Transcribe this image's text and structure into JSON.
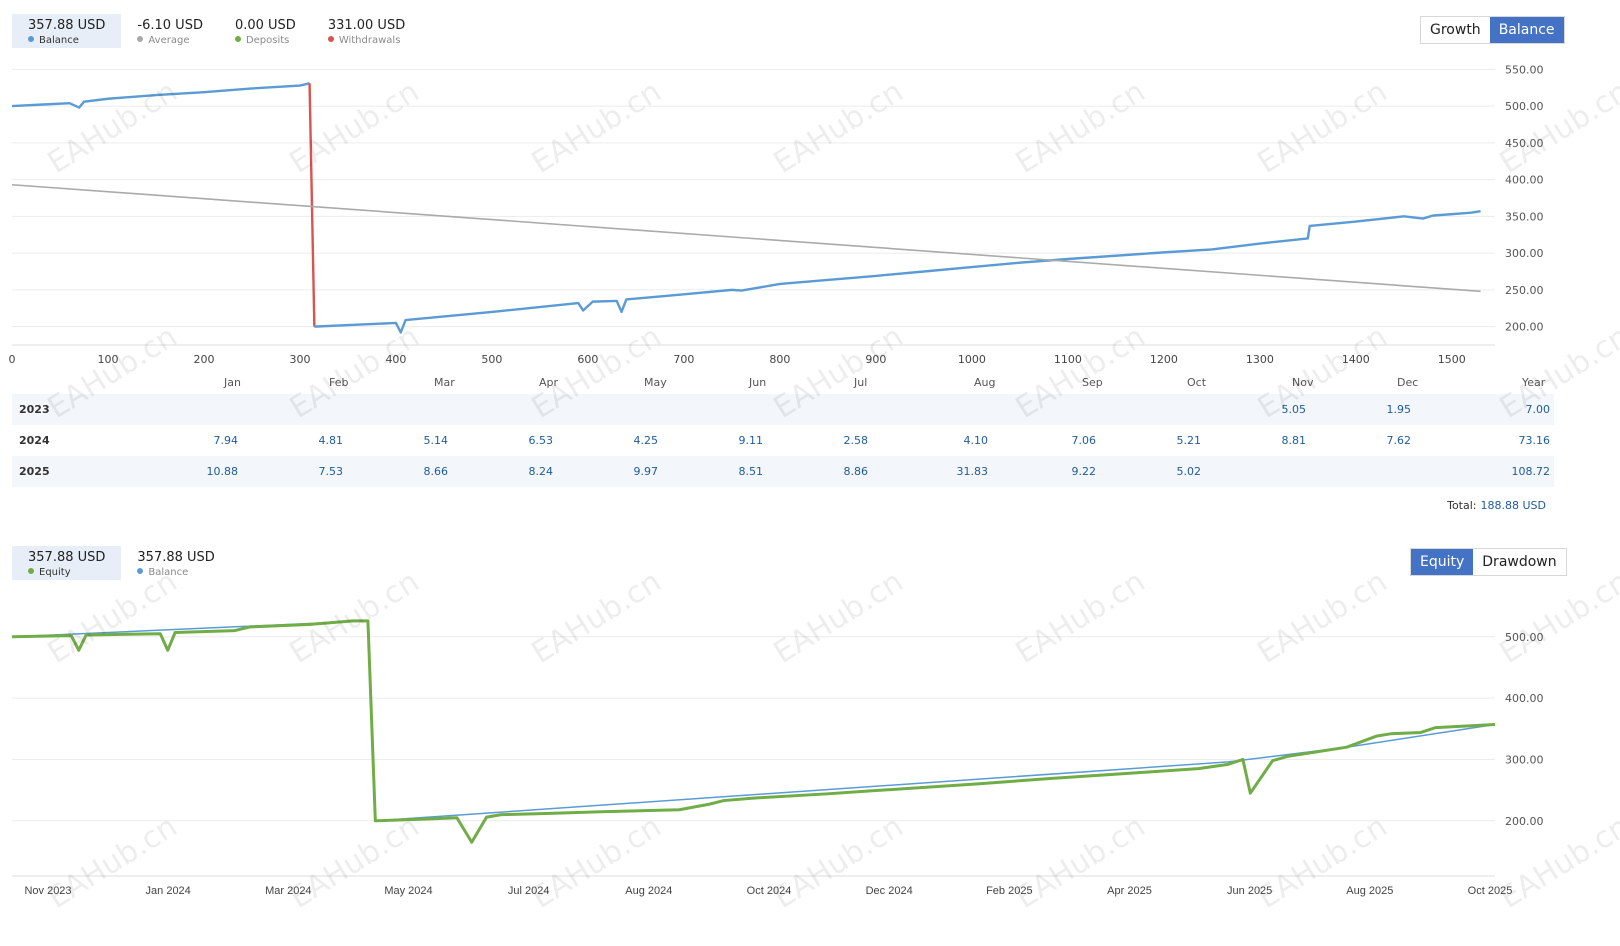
{
  "balance_panel": {
    "legend": [
      {
        "value": "357.88 USD",
        "label": "Balance",
        "color": "#5b9bd5",
        "active": true
      },
      {
        "value": "-6.10 USD",
        "label": "Average",
        "color": "#aaaaaa",
        "active": false
      },
      {
        "value": "0.00 USD",
        "label": "Deposits",
        "color": "#70ad47",
        "active": false
      },
      {
        "value": "331.00 USD",
        "label": "Withdrawals",
        "color": "#d9534f",
        "active": false
      }
    ],
    "buttons": {
      "growth": "Growth",
      "balance": "Balance"
    }
  },
  "returns_table": {
    "months": [
      "Jan",
      "Feb",
      "Mar",
      "Apr",
      "May",
      "Jun",
      "Jul",
      "Aug",
      "Sep",
      "Oct",
      "Nov",
      "Dec",
      "Year"
    ],
    "rows": [
      {
        "year": "2023",
        "values": [
          "",
          "",
          "",
          "",
          "",
          "",
          "",
          "",
          "",
          "",
          "5.05",
          "1.95",
          "7.00"
        ]
      },
      {
        "year": "2024",
        "values": [
          "7.94",
          "4.81",
          "5.14",
          "6.53",
          "4.25",
          "9.11",
          "2.58",
          "4.10",
          "7.06",
          "5.21",
          "8.81",
          "7.62",
          "73.16"
        ]
      },
      {
        "year": "2025",
        "values": [
          "10.88",
          "7.53",
          "8.66",
          "8.24",
          "9.97",
          "8.51",
          "8.86",
          "31.83",
          "9.22",
          "5.02",
          "",
          "",
          "108.72"
        ]
      }
    ],
    "total_label": "Total:",
    "total_value": "188.88 USD"
  },
  "equity_panel": {
    "legend": [
      {
        "value": "357.88 USD",
        "label": "Equity",
        "color": "#70ad47",
        "active": true
      },
      {
        "value": "357.88 USD",
        "label": "Balance",
        "color": "#5b9bd5",
        "active": false
      }
    ],
    "buttons": {
      "equity": "Equity",
      "drawdown": "Drawdown"
    }
  },
  "watermark_text": "EAHub.cn",
  "chart_data": [
    {
      "type": "line",
      "x_ticks": [
        0,
        100,
        200,
        300,
        400,
        500,
        600,
        700,
        800,
        900,
        1000,
        1100,
        1200,
        1300,
        1400,
        1500
      ],
      "y_ticks": [
        200,
        250,
        300,
        350,
        400,
        450,
        500,
        550
      ],
      "y_tick_labels": [
        "200.00",
        "250.00",
        "300.00",
        "350.00",
        "400.00",
        "450.00",
        "500.00",
        "550.00"
      ],
      "ylim": [
        175,
        560
      ],
      "xlim": [
        0,
        1545
      ],
      "series": [
        {
          "name": "Balance",
          "color": "#5b9bd5",
          "x": [
            0,
            30,
            60,
            70,
            75,
            100,
            150,
            200,
            250,
            300,
            310
          ],
          "y": [
            500,
            502,
            504,
            498,
            506,
            510,
            515,
            519,
            524,
            528,
            531
          ]
        },
        {
          "name": "Withdrawals",
          "color": "#d9534f",
          "x": [
            310,
            315
          ],
          "y": [
            531,
            200
          ]
        },
        {
          "name": "Balance",
          "color": "#5b9bd5",
          "x": [
            315,
            400,
            405,
            410,
            500,
            590,
            595,
            605,
            630,
            635,
            640,
            700,
            750,
            760,
            800,
            900,
            950,
            1000,
            1050,
            1100,
            1200,
            1250,
            1300,
            1350,
            1352,
            1400,
            1450,
            1470,
            1480,
            1520,
            1530
          ],
          "y": [
            200,
            205,
            192,
            209,
            220,
            232,
            222,
            234,
            235,
            220,
            237,
            244,
            250,
            249,
            258,
            269,
            275,
            281,
            287,
            292,
            301,
            305,
            313,
            320,
            337,
            343,
            350,
            347,
            351,
            355,
            357
          ]
        },
        {
          "name": "Average",
          "color": "#aaaaaa",
          "x": [
            0,
            1530
          ],
          "y": [
            393,
            248
          ]
        }
      ]
    },
    {
      "type": "line",
      "x_tick_labels": [
        "Nov 2023",
        "Jan 2024",
        "Mar 2024",
        "May 2024",
        "Jul 2024",
        "Aug 2024",
        "Oct 2024",
        "Dec 2024",
        "Feb 2025",
        "Apr 2025",
        "Jun 2025",
        "Aug 2025",
        "Oct 2025"
      ],
      "y_ticks": [
        200,
        300,
        400,
        500
      ],
      "y_tick_labels": [
        "200.00",
        "300.00",
        "400.00",
        "500.00"
      ],
      "ylim": [
        110,
        560
      ],
      "series": [
        {
          "name": "Equity",
          "color": "#70ad47",
          "x": [
            0,
            0.04,
            0.045,
            0.05,
            0.1,
            0.105,
            0.11,
            0.15,
            0.16,
            0.2,
            0.23,
            0.24,
            0.245,
            0.28,
            0.3,
            0.31,
            0.32,
            0.33,
            0.36,
            0.4,
            0.45,
            0.47,
            0.48,
            0.5,
            0.55,
            0.58,
            0.6,
            0.65,
            0.7,
            0.75,
            0.8,
            0.82,
            0.83,
            0.835,
            0.85,
            0.86,
            0.9,
            0.92,
            0.93,
            0.95,
            0.96,
            1.0
          ],
          "y": [
            500,
            502,
            478,
            503,
            505,
            478,
            507,
            510,
            516,
            520,
            526,
            526,
            200,
            203,
            205,
            165,
            206,
            210,
            212,
            215,
            218,
            227,
            233,
            237,
            244,
            249,
            252,
            260,
            269,
            277,
            285,
            292,
            300,
            245,
            298,
            305,
            320,
            338,
            342,
            344,
            352,
            357
          ]
        },
        {
          "name": "Balance",
          "color": "#5b9bd5",
          "x": [
            0,
            0.24,
            0.245,
            0.82,
            0.9,
            1.0
          ],
          "y": [
            500,
            526,
            200,
            296,
            320,
            357
          ]
        }
      ]
    }
  ]
}
